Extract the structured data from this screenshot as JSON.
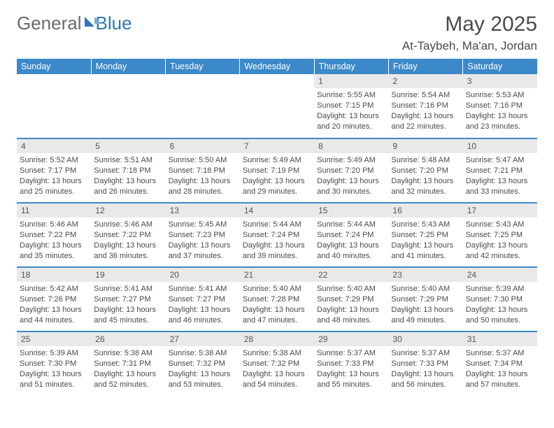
{
  "brand": {
    "word1": "General",
    "word2": "Blue"
  },
  "title": "May 2025",
  "location": "At-Taybeh, Ma'an, Jordan",
  "colors": {
    "header_bg": "#3b89c9",
    "header_text": "#ffffff",
    "daynum_bg": "#e9e9e9",
    "cell_divider": "#3b89c9",
    "body_text": "#4a4a4a",
    "logo_gray": "#6a6a6a",
    "logo_blue": "#2c77ba"
  },
  "day_headers": [
    "Sunday",
    "Monday",
    "Tuesday",
    "Wednesday",
    "Thursday",
    "Friday",
    "Saturday"
  ],
  "weeks": [
    [
      null,
      null,
      null,
      null,
      {
        "d": "1",
        "sr": "Sunrise: 5:55 AM",
        "ss": "Sunset: 7:15 PM",
        "dl": "Daylight: 13 hours and 20 minutes."
      },
      {
        "d": "2",
        "sr": "Sunrise: 5:54 AM",
        "ss": "Sunset: 7:16 PM",
        "dl": "Daylight: 13 hours and 22 minutes."
      },
      {
        "d": "3",
        "sr": "Sunrise: 5:53 AM",
        "ss": "Sunset: 7:16 PM",
        "dl": "Daylight: 13 hours and 23 minutes."
      }
    ],
    [
      {
        "d": "4",
        "sr": "Sunrise: 5:52 AM",
        "ss": "Sunset: 7:17 PM",
        "dl": "Daylight: 13 hours and 25 minutes."
      },
      {
        "d": "5",
        "sr": "Sunrise: 5:51 AM",
        "ss": "Sunset: 7:18 PM",
        "dl": "Daylight: 13 hours and 26 minutes."
      },
      {
        "d": "6",
        "sr": "Sunrise: 5:50 AM",
        "ss": "Sunset: 7:18 PM",
        "dl": "Daylight: 13 hours and 28 minutes."
      },
      {
        "d": "7",
        "sr": "Sunrise: 5:49 AM",
        "ss": "Sunset: 7:19 PM",
        "dl": "Daylight: 13 hours and 29 minutes."
      },
      {
        "d": "8",
        "sr": "Sunrise: 5:49 AM",
        "ss": "Sunset: 7:20 PM",
        "dl": "Daylight: 13 hours and 30 minutes."
      },
      {
        "d": "9",
        "sr": "Sunrise: 5:48 AM",
        "ss": "Sunset: 7:20 PM",
        "dl": "Daylight: 13 hours and 32 minutes."
      },
      {
        "d": "10",
        "sr": "Sunrise: 5:47 AM",
        "ss": "Sunset: 7:21 PM",
        "dl": "Daylight: 13 hours and 33 minutes."
      }
    ],
    [
      {
        "d": "11",
        "sr": "Sunrise: 5:46 AM",
        "ss": "Sunset: 7:22 PM",
        "dl": "Daylight: 13 hours and 35 minutes."
      },
      {
        "d": "12",
        "sr": "Sunrise: 5:46 AM",
        "ss": "Sunset: 7:22 PM",
        "dl": "Daylight: 13 hours and 36 minutes."
      },
      {
        "d": "13",
        "sr": "Sunrise: 5:45 AM",
        "ss": "Sunset: 7:23 PM",
        "dl": "Daylight: 13 hours and 37 minutes."
      },
      {
        "d": "14",
        "sr": "Sunrise: 5:44 AM",
        "ss": "Sunset: 7:24 PM",
        "dl": "Daylight: 13 hours and 39 minutes."
      },
      {
        "d": "15",
        "sr": "Sunrise: 5:44 AM",
        "ss": "Sunset: 7:24 PM",
        "dl": "Daylight: 13 hours and 40 minutes."
      },
      {
        "d": "16",
        "sr": "Sunrise: 5:43 AM",
        "ss": "Sunset: 7:25 PM",
        "dl": "Daylight: 13 hours and 41 minutes."
      },
      {
        "d": "17",
        "sr": "Sunrise: 5:43 AM",
        "ss": "Sunset: 7:25 PM",
        "dl": "Daylight: 13 hours and 42 minutes."
      }
    ],
    [
      {
        "d": "18",
        "sr": "Sunrise: 5:42 AM",
        "ss": "Sunset: 7:26 PM",
        "dl": "Daylight: 13 hours and 44 minutes."
      },
      {
        "d": "19",
        "sr": "Sunrise: 5:41 AM",
        "ss": "Sunset: 7:27 PM",
        "dl": "Daylight: 13 hours and 45 minutes."
      },
      {
        "d": "20",
        "sr": "Sunrise: 5:41 AM",
        "ss": "Sunset: 7:27 PM",
        "dl": "Daylight: 13 hours and 46 minutes."
      },
      {
        "d": "21",
        "sr": "Sunrise: 5:40 AM",
        "ss": "Sunset: 7:28 PM",
        "dl": "Daylight: 13 hours and 47 minutes."
      },
      {
        "d": "22",
        "sr": "Sunrise: 5:40 AM",
        "ss": "Sunset: 7:29 PM",
        "dl": "Daylight: 13 hours and 48 minutes."
      },
      {
        "d": "23",
        "sr": "Sunrise: 5:40 AM",
        "ss": "Sunset: 7:29 PM",
        "dl": "Daylight: 13 hours and 49 minutes."
      },
      {
        "d": "24",
        "sr": "Sunrise: 5:39 AM",
        "ss": "Sunset: 7:30 PM",
        "dl": "Daylight: 13 hours and 50 minutes."
      }
    ],
    [
      {
        "d": "25",
        "sr": "Sunrise: 5:39 AM",
        "ss": "Sunset: 7:30 PM",
        "dl": "Daylight: 13 hours and 51 minutes."
      },
      {
        "d": "26",
        "sr": "Sunrise: 5:38 AM",
        "ss": "Sunset: 7:31 PM",
        "dl": "Daylight: 13 hours and 52 minutes."
      },
      {
        "d": "27",
        "sr": "Sunrise: 5:38 AM",
        "ss": "Sunset: 7:32 PM",
        "dl": "Daylight: 13 hours and 53 minutes."
      },
      {
        "d": "28",
        "sr": "Sunrise: 5:38 AM",
        "ss": "Sunset: 7:32 PM",
        "dl": "Daylight: 13 hours and 54 minutes."
      },
      {
        "d": "29",
        "sr": "Sunrise: 5:37 AM",
        "ss": "Sunset: 7:33 PM",
        "dl": "Daylight: 13 hours and 55 minutes."
      },
      {
        "d": "30",
        "sr": "Sunrise: 5:37 AM",
        "ss": "Sunset: 7:33 PM",
        "dl": "Daylight: 13 hours and 56 minutes."
      },
      {
        "d": "31",
        "sr": "Sunrise: 5:37 AM",
        "ss": "Sunset: 7:34 PM",
        "dl": "Daylight: 13 hours and 57 minutes."
      }
    ]
  ]
}
